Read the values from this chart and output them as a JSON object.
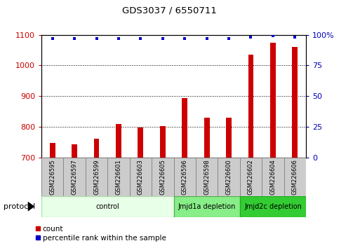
{
  "title": "GDS3037 / 6550711",
  "samples": [
    "GSM226595",
    "GSM226597",
    "GSM226599",
    "GSM226601",
    "GSM226603",
    "GSM226605",
    "GSM226596",
    "GSM226598",
    "GSM226600",
    "GSM226602",
    "GSM226604",
    "GSM226606"
  ],
  "counts": [
    748,
    744,
    762,
    808,
    797,
    802,
    893,
    830,
    830,
    1035,
    1075,
    1060
  ],
  "percentile_ranks": [
    97,
    97,
    97,
    97,
    97,
    97,
    97,
    97,
    97,
    98,
    99,
    98
  ],
  "ylim_left": [
    700,
    1100
  ],
  "ylim_right": [
    0,
    100
  ],
  "yticks_left": [
    700,
    800,
    900,
    1000,
    1100
  ],
  "yticks_right": [
    0,
    25,
    50,
    75,
    100
  ],
  "bar_color": "#cc0000",
  "dot_color": "#0000cc",
  "bar_width": 0.25,
  "groups": [
    {
      "label": "control",
      "start": 0,
      "end": 6,
      "color": "#e8ffe8",
      "edge_color": "#aaddaa"
    },
    {
      "label": "Jmjd1a depletion",
      "start": 6,
      "end": 9,
      "color": "#88ee88",
      "edge_color": "#55aa55"
    },
    {
      "label": "Jmjd2c depletion",
      "start": 9,
      "end": 12,
      "color": "#33cc33",
      "edge_color": "#22aa22"
    }
  ],
  "legend_count_label": "count",
  "legend_pct_label": "percentile rank within the sample",
  "protocol_label": "protocol",
  "bg_color": "#ffffff",
  "tick_label_color_left": "#cc0000",
  "tick_label_color_right": "#0000bb",
  "sample_box_color": "#cccccc",
  "sample_box_edge": "#888888"
}
